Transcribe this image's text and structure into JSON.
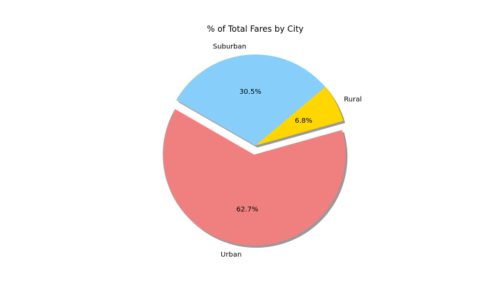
{
  "chart_data": {
    "type": "pie",
    "title": "% of Total Fares by City",
    "categories": [
      "Urban",
      "Rural",
      "Suburban"
    ],
    "values": [
      62.7,
      6.8,
      30.5
    ],
    "percent_labels": [
      "62.7%",
      "6.8%",
      "30.5%"
    ],
    "colors": [
      "#f08080",
      "#ffd700",
      "#87cefa"
    ],
    "exploded": [
      "Urban"
    ],
    "shadow": true,
    "start_angle_deg": 150,
    "legend": "none"
  }
}
